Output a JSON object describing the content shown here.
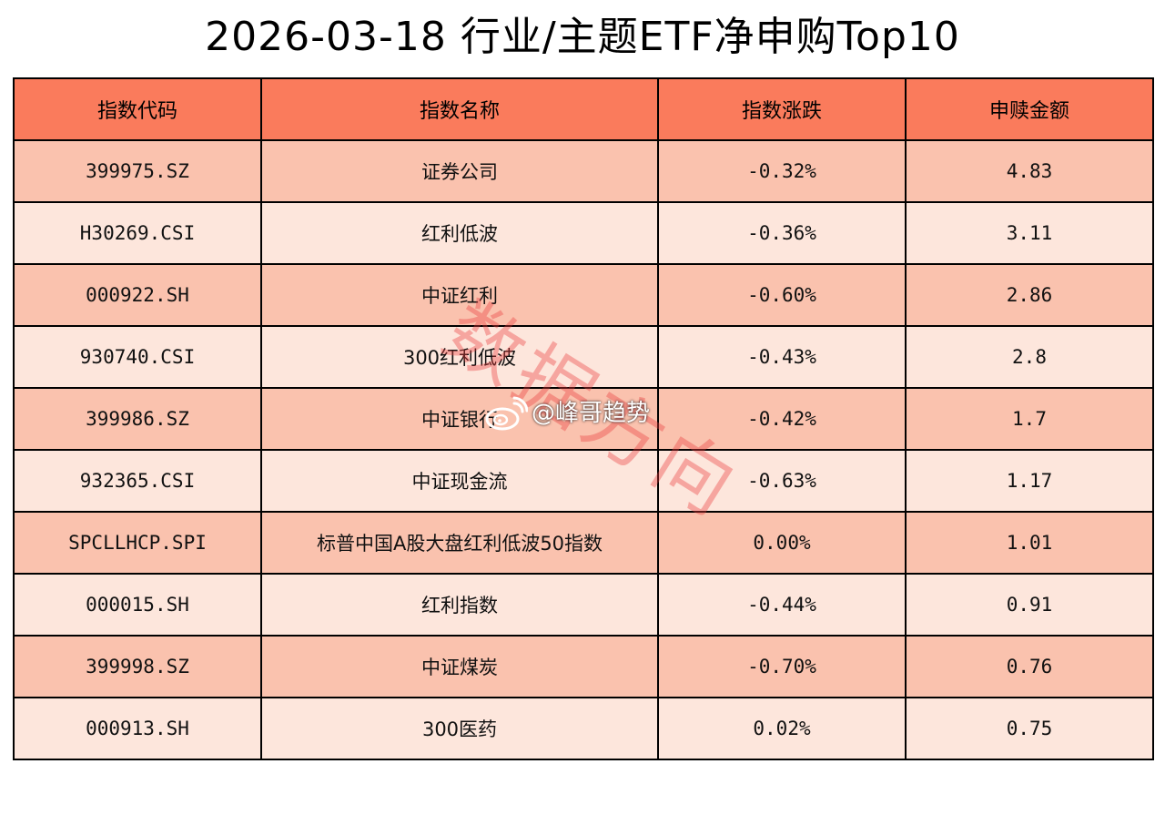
{
  "title": "2026-03-18 行业/主题ETF净申购Top10",
  "colors": {
    "header_bg": "#FA7B5C",
    "row_dark": "#FAC2AE",
    "row_light": "#FDE6DC",
    "border": "#000000",
    "watermark": "#EB3C3C"
  },
  "watermark_text": "数据方向",
  "weibo_handle": "@峰哥趋势",
  "weibo_icon": "weibo-logo-icon",
  "chart_data": {
    "type": "table",
    "title": "2026-03-18 行业/主题ETF净申购Top10",
    "columns": [
      "指数代码",
      "指数名称",
      "指数涨跌",
      "申赎金额"
    ],
    "rows": [
      [
        "399975.SZ",
        "证券公司",
        "-0.32%",
        "4.83"
      ],
      [
        "H30269.CSI",
        "红利低波",
        "-0.36%",
        "3.11"
      ],
      [
        "000922.SH",
        "中证红利",
        "-0.60%",
        "2.86"
      ],
      [
        "930740.CSI",
        "300红利低波",
        "-0.43%",
        "2.8"
      ],
      [
        "399986.SZ",
        "中证银行",
        "-0.42%",
        "1.7"
      ],
      [
        "932365.CSI",
        "中证现金流",
        "-0.63%",
        "1.17"
      ],
      [
        "SPCLLHCP.SPI",
        "标普中国A股大盘红利低波50指数",
        "0.00%",
        "1.01"
      ],
      [
        "000015.SH",
        "红利指数",
        "-0.44%",
        "0.91"
      ],
      [
        "399998.SZ",
        "中证煤炭",
        "-0.70%",
        "0.76"
      ],
      [
        "000913.SH",
        "300医药",
        "0.02%",
        "0.75"
      ]
    ]
  }
}
